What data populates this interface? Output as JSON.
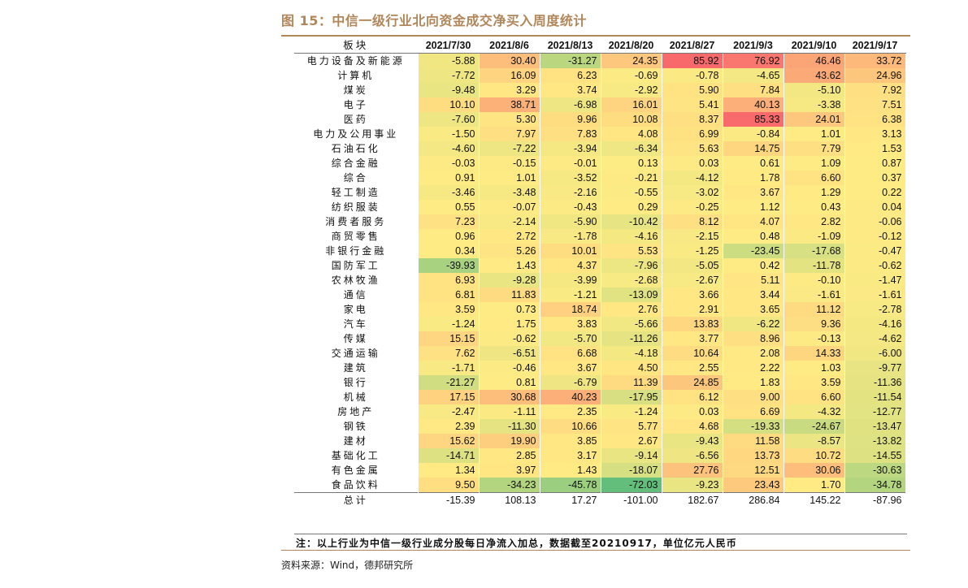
{
  "figure": {
    "title": "图 15：中信一级行业北向资金成交净买入周度统计",
    "note": "注：以上行业为中信一级行业成分股每日净流入加总，数据截至20210917，单位亿元人民币",
    "source": "资料来源：Wind，德邦研究所"
  },
  "chart_data": {
    "type": "table",
    "title": "中信一级行业北向资金成交净买入周度统计",
    "unit": "亿元人民币",
    "color_scale": {
      "low": "#63be7b",
      "mid": "#ffeb84",
      "high": "#f8696b"
    },
    "header_label": "板块",
    "columns": [
      "2021/7/30",
      "2021/8/6",
      "2021/8/13",
      "2021/8/20",
      "2021/8/27",
      "2021/9/3",
      "2021/9/10",
      "2021/9/17"
    ],
    "rows": [
      {
        "name": "电力设备及新能源",
        "values": [
          -5.88,
          30.4,
          -31.27,
          24.35,
          85.92,
          76.92,
          46.46,
          33.72
        ]
      },
      {
        "name": "计算机",
        "values": [
          -7.72,
          16.09,
          6.23,
          -0.69,
          -0.78,
          -4.65,
          43.62,
          24.96
        ]
      },
      {
        "name": "煤炭",
        "values": [
          -9.48,
          3.29,
          3.74,
          -2.92,
          5.9,
          7.84,
          -5.1,
          7.92
        ]
      },
      {
        "name": "电子",
        "values": [
          10.1,
          38.71,
          -6.98,
          16.01,
          5.41,
          40.13,
          -3.38,
          7.51
        ]
      },
      {
        "name": "医药",
        "values": [
          -7.6,
          5.3,
          9.96,
          10.08,
          8.37,
          85.33,
          24.01,
          6.38
        ]
      },
      {
        "name": "电力及公用事业",
        "values": [
          -1.5,
          7.97,
          7.83,
          4.08,
          6.99,
          -0.84,
          1.01,
          3.13
        ]
      },
      {
        "name": "石油石化",
        "values": [
          -4.6,
          -7.22,
          -3.94,
          -6.34,
          5.63,
          14.75,
          7.79,
          1.53
        ]
      },
      {
        "name": "综合金融",
        "values": [
          -0.03,
          -0.15,
          -0.01,
          0.13,
          0.03,
          0.61,
          1.09,
          0.87
        ]
      },
      {
        "name": "综合",
        "values": [
          0.91,
          1.01,
          -3.52,
          -0.21,
          -4.12,
          1.78,
          6.6,
          0.37
        ]
      },
      {
        "name": "轻工制造",
        "values": [
          -3.46,
          -3.48,
          -2.16,
          -0.55,
          -3.02,
          3.67,
          1.29,
          0.22
        ]
      },
      {
        "name": "纺织服装",
        "values": [
          0.55,
          -0.07,
          -0.43,
          0.29,
          -0.25,
          1.12,
          0.43,
          0.04
        ]
      },
      {
        "name": "消费者服务",
        "values": [
          7.23,
          -2.14,
          -5.9,
          -10.42,
          8.12,
          4.07,
          2.82,
          -0.06
        ]
      },
      {
        "name": "商贸零售",
        "values": [
          0.96,
          2.72,
          -1.78,
          -4.16,
          -2.15,
          0.48,
          -1.09,
          -0.12
        ]
      },
      {
        "name": "非银行金融",
        "values": [
          0.34,
          5.26,
          10.01,
          5.53,
          -1.25,
          -23.45,
          -17.68,
          -0.47
        ]
      },
      {
        "name": "国防军工",
        "values": [
          -39.93,
          1.43,
          4.37,
          -7.96,
          -5.05,
          0.42,
          -11.78,
          -0.62
        ]
      },
      {
        "name": "农林牧渔",
        "values": [
          6.93,
          -9.28,
          -3.99,
          -2.68,
          -2.67,
          5.11,
          -0.1,
          -1.47
        ]
      },
      {
        "name": "通信",
        "values": [
          6.81,
          11.83,
          -1.21,
          -13.09,
          3.66,
          3.44,
          -1.61,
          -1.61
        ]
      },
      {
        "name": "家电",
        "values": [
          3.59,
          0.73,
          18.74,
          2.76,
          2.91,
          3.65,
          11.12,
          -2.78
        ]
      },
      {
        "name": "汽车",
        "values": [
          -1.24,
          1.75,
          3.83,
          -5.66,
          13.83,
          -6.22,
          9.36,
          -4.16
        ]
      },
      {
        "name": "传媒",
        "values": [
          15.15,
          -0.62,
          -5.7,
          -11.26,
          3.77,
          8.96,
          -0.13,
          -4.62
        ]
      },
      {
        "name": "交通运输",
        "values": [
          7.62,
          -6.51,
          6.68,
          -4.18,
          10.64,
          2.08,
          14.33,
          -6.0
        ]
      },
      {
        "name": "建筑",
        "values": [
          -1.71,
          -0.46,
          3.67,
          4.5,
          2.55,
          2.22,
          1.03,
          -9.77
        ]
      },
      {
        "name": "银行",
        "values": [
          -21.27,
          0.81,
          -6.79,
          11.39,
          24.85,
          1.83,
          3.59,
          -11.36
        ]
      },
      {
        "name": "机械",
        "values": [
          17.15,
          30.68,
          40.23,
          -17.95,
          6.12,
          9.0,
          6.6,
          -11.54
        ]
      },
      {
        "name": "房地产",
        "values": [
          -2.47,
          -1.11,
          2.35,
          -1.24,
          0.03,
          6.69,
          -4.32,
          -12.77
        ]
      },
      {
        "name": "钢铁",
        "values": [
          2.39,
          -11.3,
          10.66,
          5.77,
          4.68,
          -19.33,
          -24.67,
          -13.47
        ]
      },
      {
        "name": "建材",
        "values": [
          15.62,
          19.9,
          3.85,
          2.67,
          -9.43,
          11.58,
          -8.57,
          -13.82
        ]
      },
      {
        "name": "基础化工",
        "values": [
          -14.71,
          2.85,
          3.17,
          -9.14,
          -6.56,
          13.73,
          10.72,
          -14.55
        ]
      },
      {
        "name": "有色金属",
        "values": [
          1.34,
          3.97,
          1.43,
          -18.07,
          27.76,
          12.51,
          30.06,
          -30.63
        ]
      },
      {
        "name": "食品饮料",
        "values": [
          9.5,
          -34.23,
          -45.78,
          -72.03,
          -9.23,
          23.43,
          1.7,
          -34.78
        ]
      }
    ],
    "total": {
      "name": "总计",
      "values": [
        -15.39,
        108.13,
        17.27,
        -101.0,
        182.67,
        286.84,
        145.22,
        -87.96
      ]
    }
  }
}
